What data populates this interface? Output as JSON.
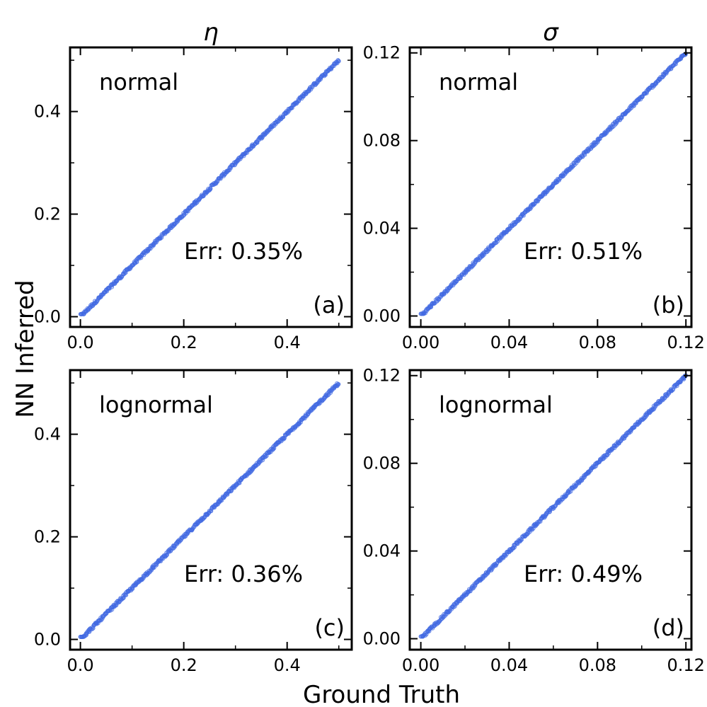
{
  "figure": {
    "xlabel": "Ground Truth",
    "ylabel": "NN Inferred",
    "column_titles": [
      "η",
      "σ"
    ],
    "marker_color": "#4169E1"
  },
  "chart_data": [
    {
      "type": "scatter",
      "panel_label": "(a)",
      "panel_letter": "a",
      "column_title": "η",
      "distribution": "normal",
      "annotation": "Err: 0.35%",
      "xlim": [
        -0.02,
        0.525
      ],
      "ylim": [
        -0.02,
        0.525
      ],
      "xticks": [
        0.0,
        0.2,
        0.4
      ],
      "yticks": [
        0.0,
        0.2,
        0.4
      ],
      "xtick_labels": [
        "0.0",
        "0.2",
        "0.4"
      ],
      "ytick_labels": [
        "0.0",
        "0.2",
        "0.4"
      ],
      "x_range": [
        0.0,
        0.5
      ],
      "y_range": [
        0.005,
        0.5
      ],
      "grid": false
    },
    {
      "type": "scatter",
      "panel_label": "(b)",
      "panel_letter": "b",
      "column_title": "σ",
      "distribution": "normal",
      "annotation": "Err: 0.51%",
      "xlim": [
        -0.005,
        0.1225
      ],
      "ylim": [
        -0.005,
        0.1225
      ],
      "xticks": [
        0.0,
        0.04,
        0.08,
        0.12
      ],
      "yticks": [
        0.0,
        0.04,
        0.08,
        0.12
      ],
      "xtick_labels": [
        "0.00",
        "0.04",
        "0.08",
        "0.12"
      ],
      "ytick_labels": [
        "0.00",
        "0.04",
        "0.08",
        "0.12"
      ],
      "x_range": [
        0.0,
        0.12
      ],
      "y_range": [
        0.001,
        0.12
      ],
      "grid": false
    },
    {
      "type": "scatter",
      "panel_label": "(c)",
      "panel_letter": "c",
      "column_title": "η",
      "distribution": "lognormal",
      "annotation": "Err: 0.36%",
      "xlim": [
        -0.02,
        0.525
      ],
      "ylim": [
        -0.02,
        0.525
      ],
      "xticks": [
        0.0,
        0.2,
        0.4
      ],
      "yticks": [
        0.0,
        0.2,
        0.4
      ],
      "xtick_labels": [
        "0.0",
        "0.2",
        "0.4"
      ],
      "ytick_labels": [
        "0.0",
        "0.2",
        "0.4"
      ],
      "x_range": [
        0.0,
        0.5
      ],
      "y_range": [
        0.005,
        0.5
      ],
      "grid": false
    },
    {
      "type": "scatter",
      "panel_label": "(d)",
      "panel_letter": "d",
      "column_title": "σ",
      "distribution": "lognormal",
      "annotation": "Err: 0.49%",
      "xlim": [
        -0.005,
        0.1225
      ],
      "ylim": [
        -0.005,
        0.1225
      ],
      "xticks": [
        0.0,
        0.04,
        0.08,
        0.12
      ],
      "yticks": [
        0.0,
        0.04,
        0.08,
        0.12
      ],
      "xtick_labels": [
        "0.00",
        "0.04",
        "0.08",
        "0.12"
      ],
      "ytick_labels": [
        "0.00",
        "0.04",
        "0.08",
        "0.12"
      ],
      "x_range": [
        0.0,
        0.12
      ],
      "y_range": [
        0.001,
        0.12
      ],
      "grid": false
    }
  ]
}
